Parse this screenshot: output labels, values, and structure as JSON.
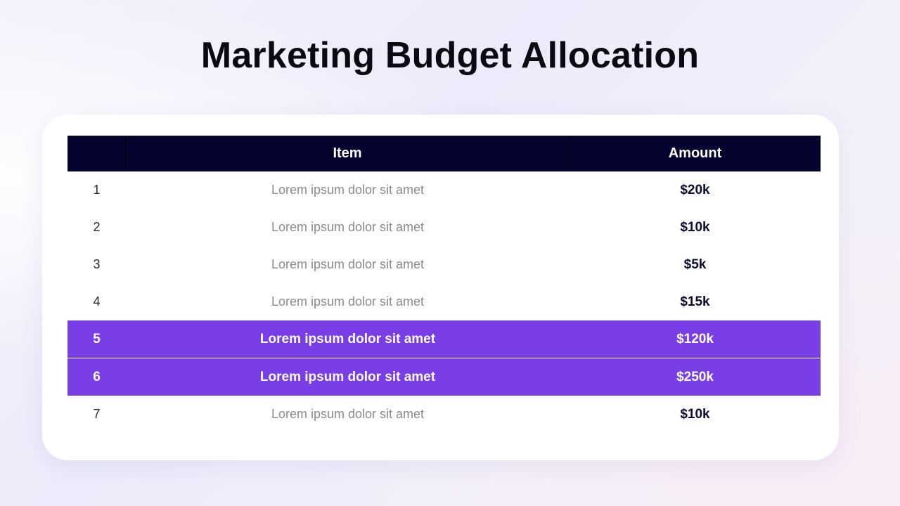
{
  "slide": {
    "title": "Marketing Budget Allocation"
  },
  "table": {
    "headers": {
      "number": "",
      "item": "Item",
      "amount": "Amount"
    },
    "rows": [
      {
        "number": "1",
        "item": "Lorem ipsum dolor sit amet",
        "amount": "$20k",
        "highlighted": false
      },
      {
        "number": "2",
        "item": "Lorem ipsum dolor sit amet",
        "amount": "$10k",
        "highlighted": false
      },
      {
        "number": "3",
        "item": "Lorem ipsum dolor sit amet",
        "amount": "$5k",
        "highlighted": false
      },
      {
        "number": "4",
        "item": "Lorem ipsum dolor sit amet",
        "amount": "$15k",
        "highlighted": false
      },
      {
        "number": "5",
        "item": "Lorem ipsum dolor sit amet",
        "amount": "$120k",
        "highlighted": true
      },
      {
        "number": "6",
        "item": "Lorem ipsum dolor sit amet",
        "amount": "$250k",
        "highlighted": true
      },
      {
        "number": "7",
        "item": "Lorem ipsum dolor sit amet",
        "amount": "$10k",
        "highlighted": false
      }
    ]
  },
  "colors": {
    "header_background": "#05042f",
    "highlight_background": "#7a3ee6",
    "amount_text": "#0a0a30",
    "item_text": "#8a8a8a"
  }
}
